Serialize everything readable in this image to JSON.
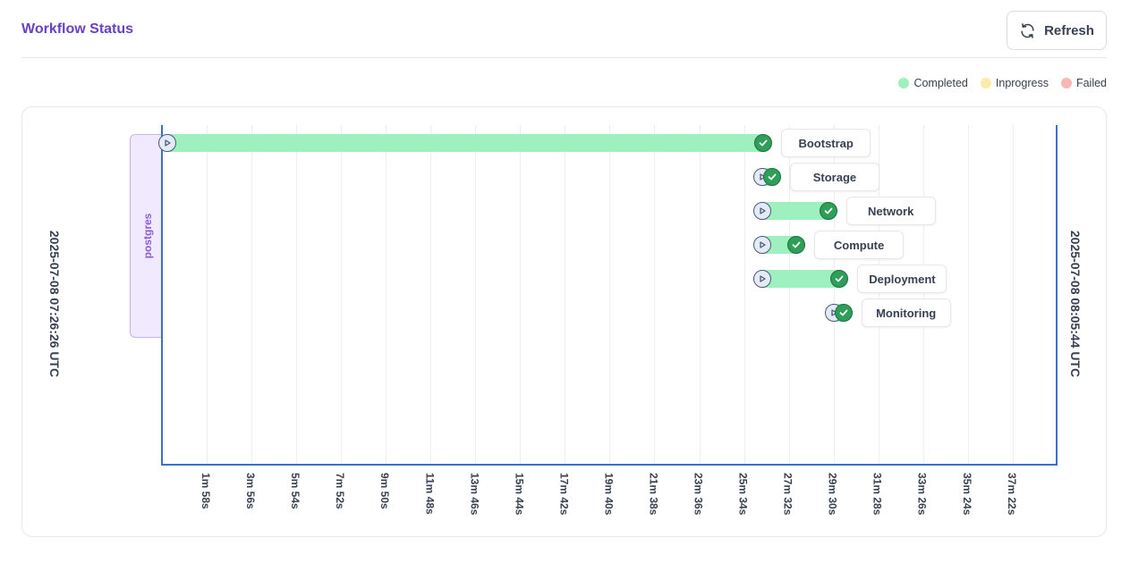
{
  "header": {
    "title": "Workflow Status",
    "refresh_label": "Refresh",
    "refresh_icon": "refresh-icon"
  },
  "legend": [
    {
      "label": "Completed",
      "color": "#9ef0bf"
    },
    {
      "label": "Inprogress",
      "color": "#fde9a8"
    },
    {
      "label": "Failed",
      "color": "#fbb5b5"
    }
  ],
  "timeline": {
    "start_label": "2025-07-08 07:26:26 UTC",
    "end_label": "2025-07-08 08:05:44 UTC",
    "group_label": "postgres",
    "ticks": [
      "1m 58s",
      "3m 56s",
      "5m 54s",
      "7m 52s",
      "9m 50s",
      "11m 48s",
      "13m 46s",
      "15m 44s",
      "17m 42s",
      "19m 40s",
      "21m 38s",
      "23m 36s",
      "25m 34s",
      "27m 32s",
      "29m 30s",
      "31m 28s",
      "33m 26s",
      "35m 24s",
      "37m 22s"
    ],
    "tasks": [
      {
        "name": "Bootstrap",
        "status": "Completed",
        "start": "0m 14s",
        "end": "26m 25s"
      },
      {
        "name": "Storage",
        "status": "Completed",
        "start": "26m 22s",
        "end": "26m 48s"
      },
      {
        "name": "Network",
        "status": "Completed",
        "start": "26m 22s",
        "end": "29m 16s"
      },
      {
        "name": "Compute",
        "status": "Completed",
        "start": "26m 22s",
        "end": "27m 52s"
      },
      {
        "name": "Deployment",
        "status": "Completed",
        "start": "26m 22s",
        "end": "29m 46s"
      },
      {
        "name": "Monitoring",
        "status": "Completed",
        "start": "29m 32s",
        "end": "29m 56s"
      }
    ]
  }
}
